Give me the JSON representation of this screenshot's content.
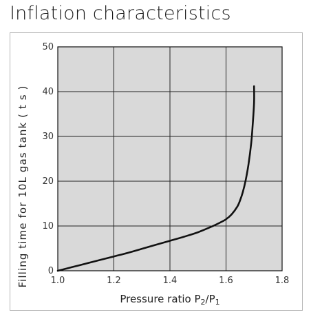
{
  "title": "Inflation characteristics",
  "chart_data": {
    "type": "line",
    "title": "Inflation characteristics",
    "xlabel": {
      "parts": [
        {
          "text": "Pressure ratio P",
          "sub": false
        },
        {
          "text": "2",
          "sub": true
        },
        {
          "text": "/P",
          "sub": false
        },
        {
          "text": "1",
          "sub": true
        }
      ]
    },
    "ylabel": "Filling time for 10L gas tank  ( t s )",
    "xlim": [
      1.0,
      1.8
    ],
    "ylim": [
      0,
      50
    ],
    "xticks": [
      1.0,
      1.2,
      1.4,
      1.6,
      1.8
    ],
    "xtick_labels": [
      "1.0",
      "1.2",
      "1.4",
      "1.6",
      "1.8"
    ],
    "yticks": [
      0,
      10,
      20,
      30,
      40,
      50
    ],
    "ytick_labels": [
      "0",
      "10",
      "20",
      "30",
      "40",
      "50"
    ],
    "grid": true,
    "plot_background": "#d9d9d9",
    "grid_color": "#222222",
    "line_color": "#111111",
    "series": [
      {
        "x": [
          1.0,
          1.05,
          1.1,
          1.15,
          1.2,
          1.25,
          1.3,
          1.35,
          1.4,
          1.45,
          1.5,
          1.55,
          1.58,
          1.6,
          1.62,
          1.64,
          1.65,
          1.66,
          1.67,
          1.68,
          1.69,
          1.695,
          1.7,
          1.7
        ],
        "y": [
          0,
          0.8,
          1.6,
          2.4,
          3.2,
          4.0,
          4.9,
          5.8,
          6.7,
          7.6,
          8.6,
          9.9,
          10.8,
          11.5,
          12.6,
          14.3,
          15.7,
          17.6,
          20.2,
          23.7,
          28.6,
          32.5,
          37.5,
          41.2
        ]
      }
    ]
  }
}
